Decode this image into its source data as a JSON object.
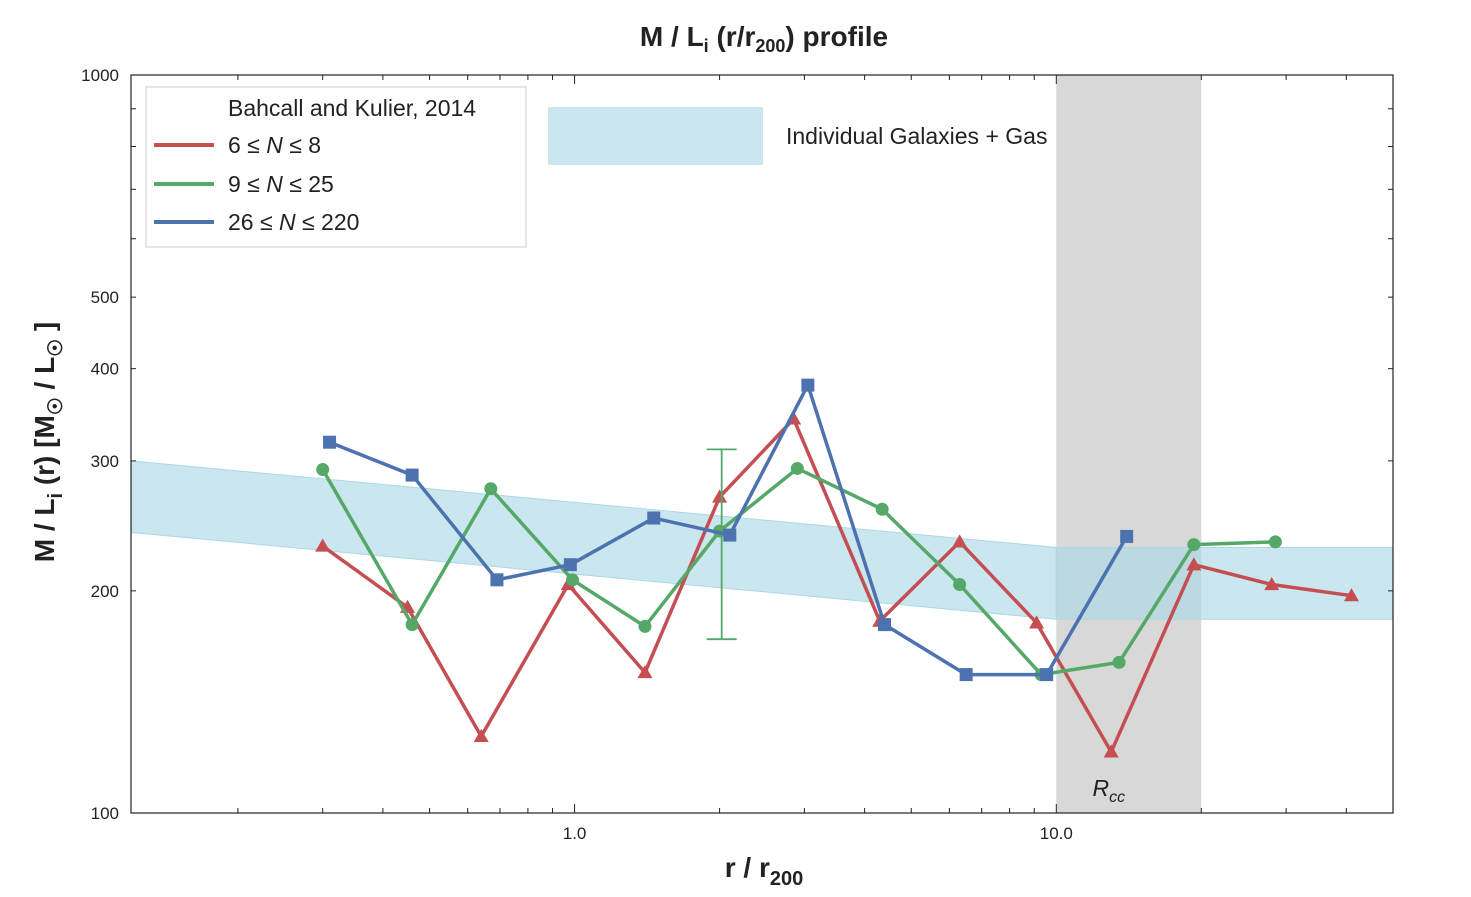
{
  "chart_data": {
    "type": "line",
    "title": {
      "main": "M / L",
      "sub_i": "i",
      "mid": " (r/r",
      "sub_200": "200",
      "end": ") profile"
    },
    "xlabel": {
      "main": "r / r",
      "sub": "200"
    },
    "ylabel": {
      "a": "M / L",
      "sub_i": "i",
      "b": " (r)  [M",
      "sun1": "☉",
      "c": " / L",
      "sun2": "☉",
      "d": " ]"
    },
    "x_scale": "log",
    "y_scale": "log",
    "xlim": [
      0.12,
      50
    ],
    "ylim": [
      100,
      1000
    ],
    "x_ticks": [
      {
        "value": 1.0,
        "label": "1.0"
      },
      {
        "value": 10.0,
        "label": "10.0"
      }
    ],
    "y_ticks": [
      {
        "value": 100,
        "label": "100"
      },
      {
        "value": 200,
        "label": "200"
      },
      {
        "value": 300,
        "label": "300"
      },
      {
        "value": 400,
        "label": "400"
      },
      {
        "value": 500,
        "label": "500"
      },
      {
        "value": 1000,
        "label": "1000"
      }
    ],
    "legend": {
      "position": "top-left",
      "title": "Bahcall and Kulier, 2014",
      "entries": [
        {
          "series": 0,
          "prefix": "6 ≤ ",
          "var": "N",
          "suffix": " ≤ 8"
        },
        {
          "series": 1,
          "prefix": "9 ≤ ",
          "var": "N",
          "suffix": " ≤ 25"
        },
        {
          "series": 2,
          "prefix": "26 ≤ ",
          "var": "N",
          "suffix": " ≤ 220"
        }
      ]
    },
    "band_legend": "Individual Galaxies + Gas",
    "series": [
      {
        "name": "6 ≤ N ≤ 8",
        "color": "#c44e52",
        "marker": "triangle",
        "x": [
          0.3,
          0.45,
          0.64,
          0.97,
          1.4,
          2.0,
          2.85,
          4.3,
          6.3,
          9.1,
          13.0,
          19.3,
          28.0,
          41.0
        ],
        "y": [
          230,
          190,
          127,
          204,
          155,
          268,
          342,
          182,
          233,
          181,
          121,
          217,
          204,
          197
        ]
      },
      {
        "name": "9 ≤ N ≤ 25",
        "color": "#55a868",
        "marker": "circle",
        "x": [
          0.3,
          0.46,
          0.67,
          0.99,
          1.4,
          2.0,
          2.9,
          4.35,
          6.3,
          9.3,
          13.5,
          19.3,
          28.5
        ],
        "y": [
          292,
          180,
          275,
          207,
          179,
          241,
          293,
          258,
          204,
          154,
          160,
          231,
          233
        ],
        "errorbar": {
          "x": 2.02,
          "y": 241,
          "ylow": 172,
          "yhigh": 311
        }
      },
      {
        "name": "26 ≤ N ≤ 220",
        "color": "#4c72b0",
        "marker": "square",
        "x": [
          0.31,
          0.46,
          0.69,
          0.98,
          1.46,
          2.1,
          3.05,
          4.4,
          6.5,
          9.55,
          14.0
        ],
        "y": [
          318,
          287,
          207,
          217,
          251,
          238,
          380,
          180,
          154,
          154,
          237
        ]
      }
    ],
    "bands": [
      {
        "name": "Individual Galaxies + Gas",
        "color": "#add8e6",
        "x": [
          0.12,
          10.0
        ],
        "lower_y": [
          240,
          183
        ],
        "upper_y": [
          300,
          229
        ]
      },
      {
        "name": "Individual Galaxies + Gas",
        "color": "#add8e6",
        "x": [
          10.0,
          50.0
        ],
        "lower_y": [
          183,
          183
        ],
        "upper_y": [
          229,
          229
        ]
      }
    ],
    "vspan": {
      "x0": 10.0,
      "x1": 20.0,
      "color": "#d8d8d8",
      "label": {
        "main": "R",
        "sub": "cc"
      }
    }
  }
}
